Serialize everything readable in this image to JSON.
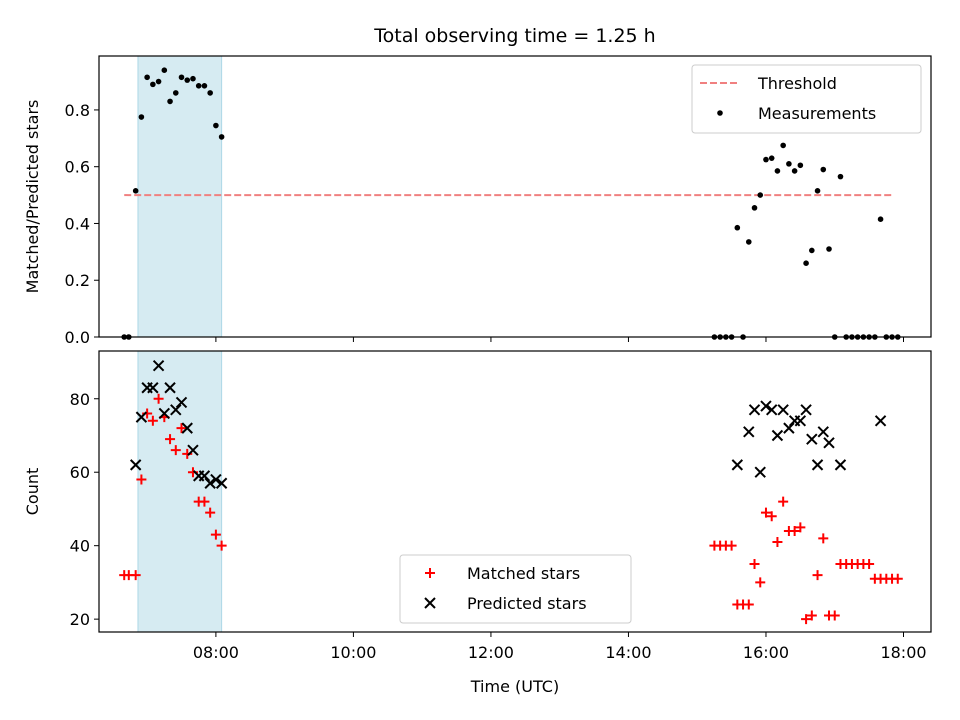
{
  "chart_data": [
    {
      "type": "scatter",
      "title": "Total observing time = 1.25 h",
      "xlabel": "",
      "ylabel": "Matched/Predicted stars",
      "xlim": [
        "06:18",
        "18:24"
      ],
      "ylim": [
        0,
        0.99
      ],
      "yticks": [
        "0.0",
        "0.2",
        "0.4",
        "0.6",
        "0.8"
      ],
      "shaded_region": [
        "06:52",
        "08:05"
      ],
      "legend_position": "upper-right",
      "threshold": {
        "name": "Threshold",
        "value": 0.5,
        "x_range": [
          "06:40",
          "17:51"
        ],
        "color": "#f08080"
      },
      "series": [
        {
          "name": "Measurements",
          "marker": "dot",
          "color": "#000000",
          "points": [
            [
              "06:40",
              0.0
            ],
            [
              "06:44",
              0.0
            ],
            [
              "06:50",
              0.515
            ],
            [
              "06:55",
              0.775
            ],
            [
              "07:00",
              0.915
            ],
            [
              "07:05",
              0.89
            ],
            [
              "07:10",
              0.9
            ],
            [
              "07:15",
              0.94
            ],
            [
              "07:20",
              0.83
            ],
            [
              "07:25",
              0.86
            ],
            [
              "07:30",
              0.915
            ],
            [
              "07:35",
              0.905
            ],
            [
              "07:40",
              0.91
            ],
            [
              "07:45",
              0.885
            ],
            [
              "07:50",
              0.885
            ],
            [
              "07:55",
              0.86
            ],
            [
              "08:00",
              0.745
            ],
            [
              "08:05",
              0.705
            ],
            [
              "15:15",
              0.0
            ],
            [
              "15:20",
              0.0
            ],
            [
              "15:25",
              0.0
            ],
            [
              "15:30",
              0.0
            ],
            [
              "15:35",
              0.385
            ],
            [
              "15:40",
              0.0
            ],
            [
              "15:45",
              0.335
            ],
            [
              "15:50",
              0.455
            ],
            [
              "15:55",
              0.5
            ],
            [
              "16:00",
              0.625
            ],
            [
              "16:05",
              0.63
            ],
            [
              "16:10",
              0.585
            ],
            [
              "16:15",
              0.675
            ],
            [
              "16:20",
              0.61
            ],
            [
              "16:25",
              0.585
            ],
            [
              "16:30",
              0.605
            ],
            [
              "16:35",
              0.26
            ],
            [
              "16:40",
              0.305
            ],
            [
              "16:45",
              0.515
            ],
            [
              "16:50",
              0.59
            ],
            [
              "16:55",
              0.31
            ],
            [
              "17:00",
              0.0
            ],
            [
              "17:05",
              0.565
            ],
            [
              "17:10",
              0.0
            ],
            [
              "17:15",
              0.0
            ],
            [
              "17:20",
              0.0
            ],
            [
              "17:25",
              0.0
            ],
            [
              "17:30",
              0.0
            ],
            [
              "17:35",
              0.0
            ],
            [
              "17:40",
              0.415
            ],
            [
              "17:45",
              0.0
            ],
            [
              "17:50",
              0.0
            ],
            [
              "17:55",
              0.0
            ]
          ]
        }
      ]
    },
    {
      "type": "scatter",
      "title": "",
      "xlabel": "Time (UTC)",
      "ylabel": "Count",
      "xlim": [
        "06:18",
        "18:24"
      ],
      "ylim": [
        16.5,
        93
      ],
      "yticks": [
        "20",
        "40",
        "60",
        "80"
      ],
      "xticks": [
        "08:00",
        "10:00",
        "12:00",
        "14:00",
        "16:00",
        "18:00"
      ],
      "shaded_region": [
        "06:52",
        "08:05"
      ],
      "legend_position": "lower-center",
      "series": [
        {
          "name": "Matched stars",
          "marker": "plus",
          "color": "#ff0000",
          "points": [
            [
              "06:40",
              32
            ],
            [
              "06:44",
              32
            ],
            [
              "06:50",
              32
            ],
            [
              "06:55",
              58
            ],
            [
              "07:00",
              76
            ],
            [
              "07:05",
              74
            ],
            [
              "07:10",
              80
            ],
            [
              "07:15",
              75
            ],
            [
              "07:20",
              69
            ],
            [
              "07:25",
              66
            ],
            [
              "07:30",
              72
            ],
            [
              "07:35",
              65
            ],
            [
              "07:40",
              60
            ],
            [
              "07:45",
              52
            ],
            [
              "07:50",
              52
            ],
            [
              "07:55",
              49
            ],
            [
              "08:00",
              43
            ],
            [
              "08:05",
              40
            ],
            [
              "15:15",
              40
            ],
            [
              "15:20",
              40
            ],
            [
              "15:25",
              40
            ],
            [
              "15:30",
              40
            ],
            [
              "15:35",
              24
            ],
            [
              "15:40",
              24
            ],
            [
              "15:45",
              24
            ],
            [
              "15:50",
              35
            ],
            [
              "15:55",
              30
            ],
            [
              "16:00",
              49
            ],
            [
              "16:05",
              48
            ],
            [
              "16:10",
              41
            ],
            [
              "16:15",
              52
            ],
            [
              "16:20",
              44
            ],
            [
              "16:25",
              44
            ],
            [
              "16:30",
              45
            ],
            [
              "16:35",
              20
            ],
            [
              "16:40",
              21
            ],
            [
              "16:45",
              32
            ],
            [
              "16:50",
              42
            ],
            [
              "16:55",
              21
            ],
            [
              "17:00",
              21
            ],
            [
              "17:05",
              35
            ],
            [
              "17:10",
              35
            ],
            [
              "17:15",
              35
            ],
            [
              "17:20",
              35
            ],
            [
              "17:25",
              35
            ],
            [
              "17:30",
              35
            ],
            [
              "17:35",
              31
            ],
            [
              "17:40",
              31
            ],
            [
              "17:45",
              31
            ],
            [
              "17:50",
              31
            ],
            [
              "17:55",
              31
            ]
          ]
        },
        {
          "name": "Predicted stars",
          "marker": "x",
          "color": "#000000",
          "points": [
            [
              "06:50",
              62
            ],
            [
              "06:55",
              75
            ],
            [
              "07:00",
              83
            ],
            [
              "07:05",
              83
            ],
            [
              "07:10",
              89
            ],
            [
              "07:15",
              76
            ],
            [
              "07:20",
              83
            ],
            [
              "07:25",
              77
            ],
            [
              "07:30",
              79
            ],
            [
              "07:35",
              72
            ],
            [
              "07:40",
              66
            ],
            [
              "07:45",
              59
            ],
            [
              "07:50",
              59
            ],
            [
              "07:55",
              57
            ],
            [
              "08:00",
              58
            ],
            [
              "08:05",
              57
            ],
            [
              "15:35",
              62
            ],
            [
              "15:45",
              71
            ],
            [
              "15:50",
              77
            ],
            [
              "15:55",
              60
            ],
            [
              "16:00",
              78
            ],
            [
              "16:05",
              77
            ],
            [
              "16:10",
              70
            ],
            [
              "16:15",
              77
            ],
            [
              "16:20",
              72
            ],
            [
              "16:25",
              74
            ],
            [
              "16:30",
              74
            ],
            [
              "16:35",
              77
            ],
            [
              "16:40",
              69
            ],
            [
              "16:45",
              62
            ],
            [
              "16:50",
              71
            ],
            [
              "16:55",
              68
            ],
            [
              "17:05",
              62
            ],
            [
              "17:40",
              74
            ]
          ]
        }
      ]
    }
  ]
}
